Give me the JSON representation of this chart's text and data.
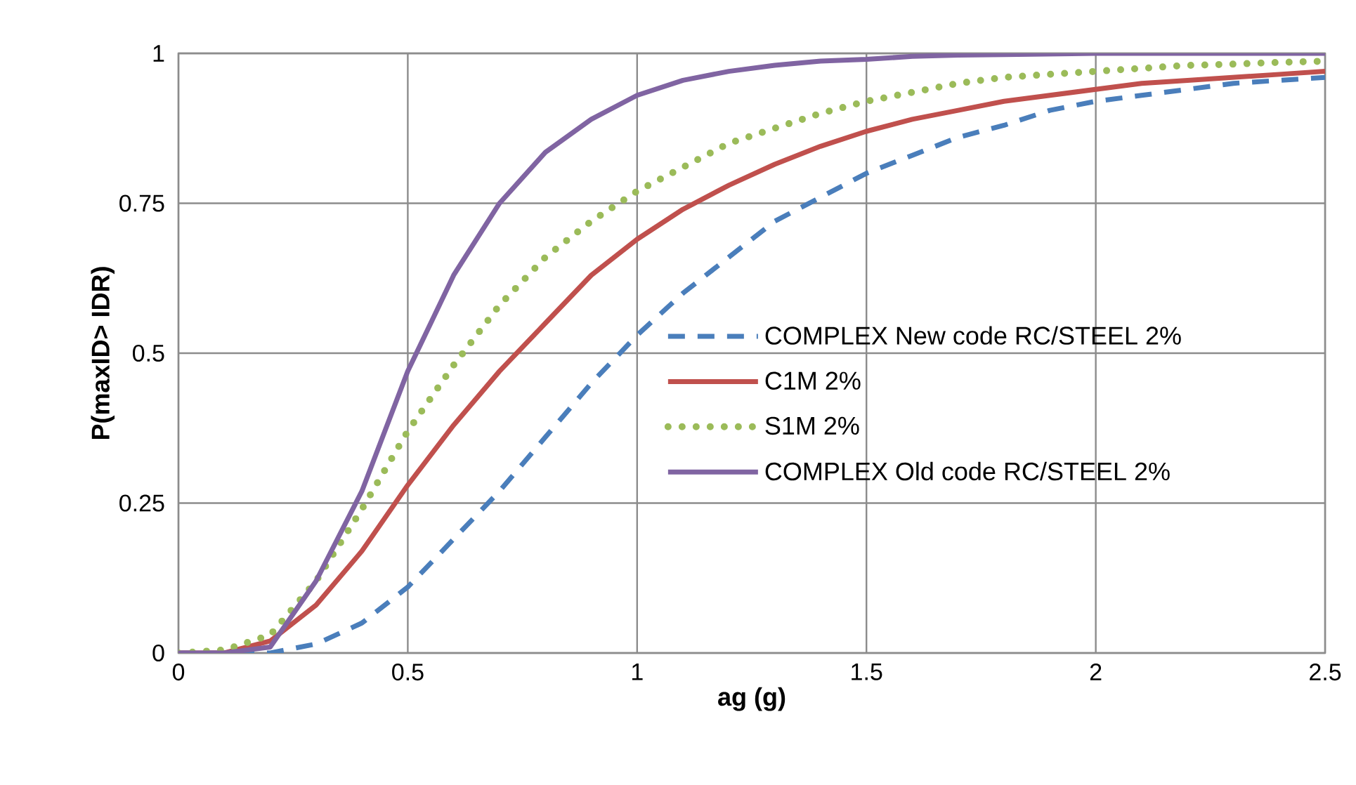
{
  "chart_data": {
    "type": "line",
    "xlabel": "ag   (g)",
    "ylabel": "P(maxID> IDR)",
    "x": [
      0,
      0.1,
      0.2,
      0.3,
      0.4,
      0.5,
      0.6,
      0.7,
      0.8,
      0.9,
      1.0,
      1.1,
      1.2,
      1.3,
      1.4,
      1.5,
      1.6,
      1.7,
      1.8,
      1.9,
      2.0,
      2.1,
      2.2,
      2.3,
      2.4,
      2.5
    ],
    "series": [
      {
        "name": "COMPLEX  New code  RC/STEEL  2%",
        "color": "#4a7ebb",
        "line_style": "dashed",
        "values": [
          0,
          0,
          0,
          0.015,
          0.05,
          0.11,
          0.19,
          0.27,
          0.36,
          0.45,
          0.53,
          0.6,
          0.66,
          0.72,
          0.76,
          0.8,
          0.83,
          0.86,
          0.88,
          0.905,
          0.92,
          0.93,
          0.94,
          0.95,
          0.955,
          0.96
        ]
      },
      {
        "name": "C1M  2%",
        "color": "#c0504d",
        "line_style": "solid",
        "values": [
          0,
          0,
          0.02,
          0.08,
          0.17,
          0.28,
          0.38,
          0.47,
          0.55,
          0.63,
          0.69,
          0.74,
          0.78,
          0.815,
          0.845,
          0.87,
          0.89,
          0.905,
          0.92,
          0.93,
          0.94,
          0.95,
          0.955,
          0.96,
          0.965,
          0.97
        ]
      },
      {
        "name": "S1M 2%",
        "color": "#9bbb59",
        "line_style": "dotted",
        "values": [
          0,
          0.005,
          0.03,
          0.12,
          0.24,
          0.37,
          0.48,
          0.58,
          0.66,
          0.72,
          0.77,
          0.81,
          0.85,
          0.875,
          0.9,
          0.92,
          0.935,
          0.95,
          0.96,
          0.965,
          0.97,
          0.975,
          0.98,
          0.982,
          0.985,
          0.987
        ]
      },
      {
        "name": "COMPLEX  Old code  RC/STEEL  2%",
        "color": "#8064a2",
        "line_style": "solid",
        "values": [
          0,
          0,
          0.01,
          0.12,
          0.27,
          0.47,
          0.63,
          0.75,
          0.835,
          0.89,
          0.93,
          0.955,
          0.97,
          0.98,
          0.987,
          0.99,
          0.995,
          0.997,
          0.998,
          0.999,
          1,
          1,
          1,
          1,
          1,
          1
        ]
      }
    ],
    "xlim": [
      0,
      2.5
    ],
    "xticks": [
      0,
      0.5,
      1,
      1.5,
      2,
      2.5
    ],
    "ylim": [
      0,
      1
    ],
    "yticks": [
      0,
      0.25,
      0.5,
      0.75,
      1
    ],
    "grid": true,
    "legend": "bottom right",
    "marker": "none"
  }
}
